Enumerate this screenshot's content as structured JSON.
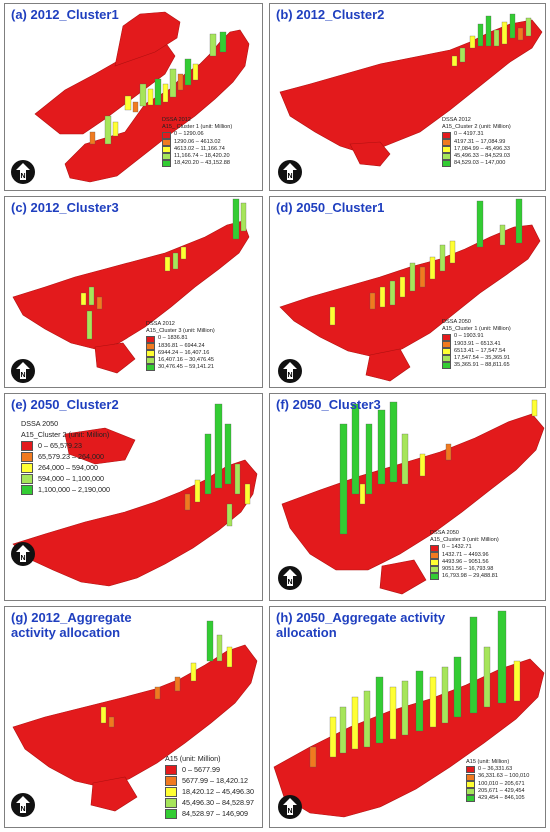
{
  "colors": {
    "class1": "#e31a1c",
    "class2": "#f07a20",
    "class3": "#ffff33",
    "class4": "#a6e55a",
    "class5": "#33cc33"
  },
  "north_arrow": {
    "icon": "north-arrow-icon",
    "label": "N"
  },
  "panels": [
    {
      "title": "(a) 2012_Cluster1",
      "legend_title": "DSSA 2012",
      "legend_subtitle": "A15_ Cluster 1 (unit: Million)",
      "classes": [
        "0 – 1290.06",
        "1290.06 – 4613.02",
        "4613.02 – 11,166.74",
        "11,166.74 – 18,420.20",
        "18,420.20 – 43,152.88"
      ]
    },
    {
      "title": "(b) 2012_Cluster2",
      "legend_title": "DSSA 2012",
      "legend_subtitle": "A15_Cluster 2 (unit: Million)",
      "classes": [
        "0 – 4197.31",
        "4197.31 – 17,084.99",
        "17,084.99 – 45,496.33",
        "45,496.33 – 84,529.03",
        "84,529.03 – 147,000"
      ]
    },
    {
      "title": "(c) 2012_Cluster3",
      "legend_title": "DSSA 2012",
      "legend_subtitle": "A15_Cluster 3 (unit: Million)",
      "classes": [
        "0 – 1836.81",
        "1836.81 – 6944.24",
        "6944.24 – 16,407.16",
        "16,407.16 – 30,476.45",
        "30,476.45 – 59,141.21"
      ]
    },
    {
      "title": "(d) 2050_Cluster1",
      "legend_title": "DSSA 2050",
      "legend_subtitle": "A15_Cluster 1 (unit: Million)",
      "classes": [
        "0 – 1903.91",
        "1903.91 – 6513.41",
        "6513.41 – 17,547.54",
        "17,547.54 – 35,365.91",
        "35,365.91 – 88,811.65"
      ]
    },
    {
      "title": "(e) 2050_Cluster2",
      "legend_title": "DSSA 2050",
      "legend_subtitle": "A15_Cluster 2 (unit: Million)",
      "classes": [
        "0 – 65,579.23",
        "65,579.23 – 264,000",
        "264,000 – 594,000",
        "594,000 – 1,100,000",
        "1,100,000 – 2,190,000"
      ]
    },
    {
      "title": "(f) 2050_Cluster3",
      "legend_title": "DSSA 2050",
      "legend_subtitle": "A15_Cluster 3 (unit: Million)",
      "classes": [
        "0 – 1432.71",
        "1432.71 – 4493.96",
        "4493.96 – 9051.56",
        "9051.56 – 16,793.98",
        "16,793.98 – 29,488.81"
      ]
    },
    {
      "title": "(g) 2012_Aggregate\nactivity allocation",
      "legend_title": "",
      "legend_subtitle": "A15 (unit: Million)",
      "classes": [
        "0 – 5677.99",
        "5677.99 – 18,420.12",
        "18,420.12 – 45,496.30",
        "45,496.30 – 84,528.97",
        "84,528.97 – 146,909"
      ]
    },
    {
      "title": "(h) 2050_Aggregate activity\nallocation",
      "legend_title": "",
      "legend_subtitle": "A15 (unit: Million)",
      "classes": [
        "0 – 36,331.63",
        "36,331.63 – 100,010",
        "100,010 – 205,671",
        "205,671 – 429,454",
        "429,454 – 846,105"
      ]
    }
  ]
}
